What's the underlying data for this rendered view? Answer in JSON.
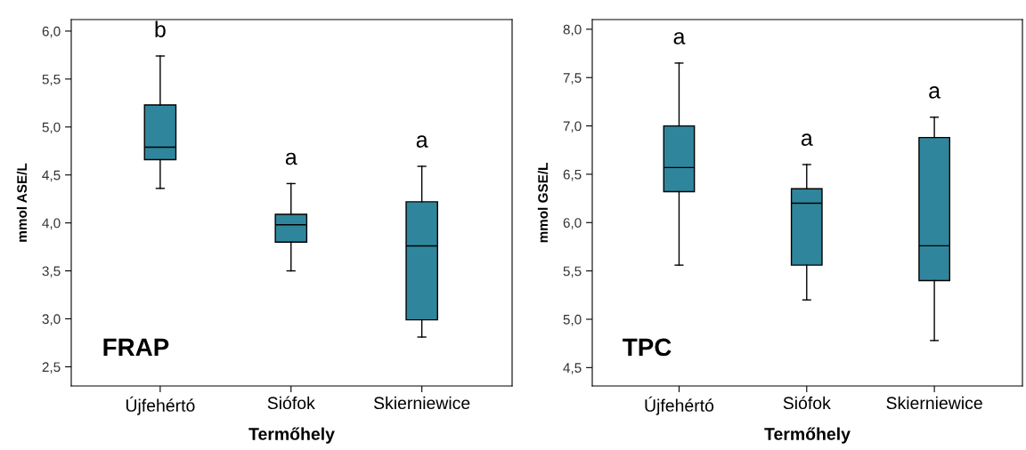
{
  "chart_data": [
    {
      "type": "box",
      "xlabel": "Termőhely",
      "ylabel": "mmol ASE/L",
      "categories": [
        "Újfehértó",
        "Siófok",
        "Skierniewice"
      ],
      "color": "#2f869c",
      "boxes": [
        {
          "low": 4.36,
          "q1": 4.66,
          "median": 4.79,
          "q3": 5.23,
          "high": 5.74
        },
        {
          "low": 3.5,
          "q1": 3.8,
          "median": 3.98,
          "q3": 4.09,
          "high": 4.41
        },
        {
          "low": 2.81,
          "q1": 2.99,
          "median": 3.76,
          "q3": 4.22,
          "high": 4.59
        }
      ],
      "ylim": [
        2.3,
        6.12
      ],
      "yticks": [
        {
          "value": 2.5,
          "label": "2,5"
        },
        {
          "value": 3.0,
          "label": "3,0"
        },
        {
          "value": 3.5,
          "label": "3,5"
        },
        {
          "value": 4.0,
          "label": "4,0"
        },
        {
          "value": 4.5,
          "label": "4,5"
        },
        {
          "value": 5.0,
          "label": "5,0"
        },
        {
          "value": 5.5,
          "label": "5,5"
        },
        {
          "value": 6.0,
          "label": "6,0"
        }
      ],
      "grid": false,
      "annotations": [
        "b",
        "a",
        "a",
        "FRAP"
      ]
    },
    {
      "type": "box",
      "xlabel": "Termőhely",
      "ylabel": "mmol GSE/L",
      "categories": [
        "Újfehértó",
        "Siófok",
        "Skierniewice"
      ],
      "color": "#2f869c",
      "boxes": [
        {
          "low": 5.56,
          "q1": 6.32,
          "median": 6.57,
          "q3": 7.0,
          "high": 7.65
        },
        {
          "low": 5.2,
          "q1": 5.56,
          "median": 6.2,
          "q3": 6.35,
          "high": 6.6
        },
        {
          "low": 4.78,
          "q1": 5.4,
          "median": 5.76,
          "q3": 6.88,
          "high": 7.09
        }
      ],
      "ylim": [
        4.31,
        8.1
      ],
      "yticks": [
        {
          "value": 4.5,
          "label": "4,5"
        },
        {
          "value": 5.0,
          "label": "5,0"
        },
        {
          "value": 5.5,
          "label": "5,5"
        },
        {
          "value": 6.0,
          "label": "6,0"
        },
        {
          "value": 6.5,
          "label": "6,5"
        },
        {
          "value": 7.0,
          "label": "7,0"
        },
        {
          "value": 7.5,
          "label": "7,5"
        },
        {
          "value": 8.0,
          "label": "8,0"
        }
      ],
      "grid": false,
      "annotations": [
        "a",
        "a",
        "a",
        "TPC"
      ]
    }
  ]
}
